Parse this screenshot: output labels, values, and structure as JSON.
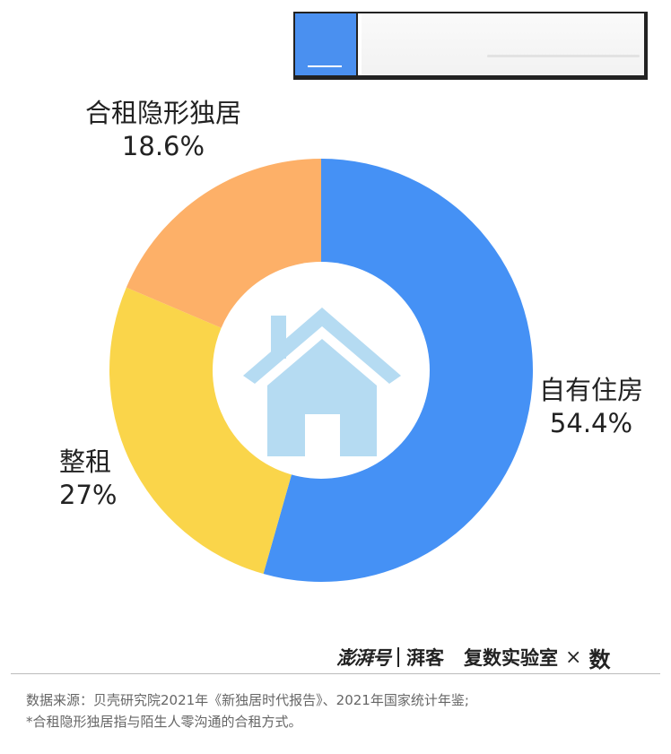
{
  "chart_data": {
    "type": "pie",
    "donut": true,
    "title": "",
    "slices": [
      {
        "label": "自有住房",
        "percent_label": "54.4%",
        "value": 54.4,
        "color": "#4591f5"
      },
      {
        "label": "整租",
        "percent_label": "27%",
        "value": 27.0,
        "color": "#fad54a"
      },
      {
        "label": "合租隐形独居",
        "percent_label": "18.6%",
        "value": 18.6,
        "color": "#fdb068"
      }
    ],
    "center_icon": "house-icon",
    "center_icon_color": "#b5dbf2"
  },
  "branding": {
    "logo_1": "澎湃号",
    "logo_2": "湃客",
    "logo_3": "复数实验室",
    "separator": "×",
    "logo_4": "数"
  },
  "notes": {
    "source": "数据来源：贝壳研究院2021年《新独居时代报告》、2021年国家统计年鉴;",
    "footnote": "*合租隐形独居指与陌生人零沟通的合租方式。"
  },
  "colors": {
    "accent": "#4a90f0"
  }
}
